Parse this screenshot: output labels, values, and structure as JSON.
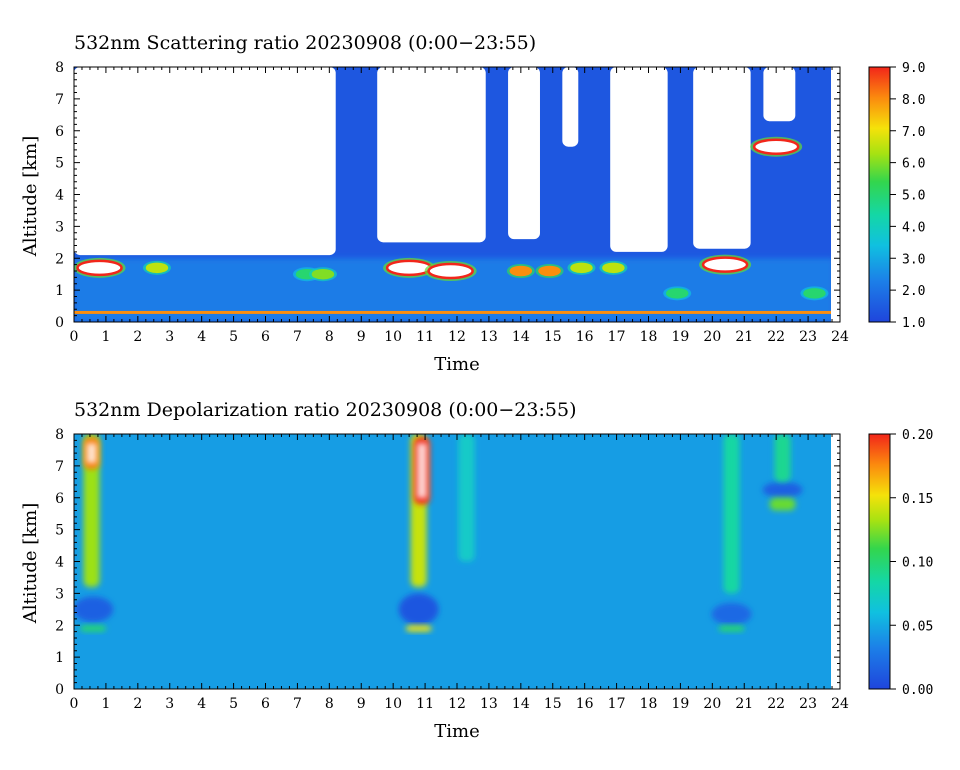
{
  "chart_data": [
    {
      "type": "heatmap",
      "title": "532nm Scattering ratio  20230908 (0:00−23:55)",
      "xlabel": "Time",
      "ylabel": "Altitude [km]",
      "xlim": [
        0,
        24
      ],
      "ylim": [
        0,
        8
      ],
      "x_ticks": [
        "0",
        "1",
        "2",
        "3",
        "4",
        "5",
        "6",
        "7",
        "8",
        "9",
        "10",
        "11",
        "12",
        "13",
        "14",
        "15",
        "16",
        "17",
        "18",
        "19",
        "20",
        "21",
        "22",
        "23",
        "24"
      ],
      "y_ticks": [
        "0",
        "1",
        "2",
        "3",
        "4",
        "5",
        "6",
        "7",
        "8"
      ],
      "data_end_time": 23.8,
      "colorbar": {
        "min": 1.0,
        "max": 9.0,
        "ticks": [
          "1.0",
          "2.0",
          "3.0",
          "4.0",
          "5.0",
          "6.0",
          "7.0",
          "8.0",
          "9.0"
        ]
      },
      "background_level": 1.4,
      "boundary_layer": {
        "top_km": 2.0,
        "level": 2.2
      },
      "surface_band": {
        "altitude_km": 0.3,
        "level": 8.0
      },
      "no_data_regions": [
        {
          "x_from": 0.0,
          "x_to": 8.2,
          "y_from": 2.1,
          "y_to": 8.0
        },
        {
          "x_from": 9.5,
          "x_to": 12.9,
          "y_from": 2.5,
          "y_to": 8.0
        },
        {
          "x_from": 13.6,
          "x_to": 14.6,
          "y_from": 2.6,
          "y_to": 8.0
        },
        {
          "x_from": 15.3,
          "x_to": 15.8,
          "y_from": 5.5,
          "y_to": 8.0
        },
        {
          "x_from": 16.8,
          "x_to": 18.6,
          "y_from": 2.2,
          "y_to": 8.0
        },
        {
          "x_from": 19.4,
          "x_to": 21.2,
          "y_from": 2.3,
          "y_to": 8.0
        },
        {
          "x_from": 21.6,
          "x_to": 22.6,
          "y_from": 6.3,
          "y_to": 8.0
        }
      ],
      "features": [
        {
          "time": 0.8,
          "altitude_km": 1.7,
          "level": 9.0,
          "note": "aerosol/cloud layer"
        },
        {
          "time": 2.6,
          "altitude_km": 1.7,
          "level": 6.5
        },
        {
          "time": 7.3,
          "altitude_km": 1.5,
          "level": 5.0
        },
        {
          "time": 7.8,
          "altitude_km": 1.5,
          "level": 6.0
        },
        {
          "time": 10.5,
          "altitude_km": 1.7,
          "level": 9.0
        },
        {
          "time": 11.8,
          "altitude_km": 1.6,
          "level": 9.0
        },
        {
          "time": 14.0,
          "altitude_km": 1.6,
          "level": 8.0
        },
        {
          "time": 14.9,
          "altitude_km": 1.6,
          "level": 8.0
        },
        {
          "time": 15.9,
          "altitude_km": 1.7,
          "level": 6.5
        },
        {
          "time": 16.9,
          "altitude_km": 1.7,
          "level": 6.5
        },
        {
          "time": 18.9,
          "altitude_km": 0.9,
          "level": 5.0
        },
        {
          "time": 20.4,
          "altitude_km": 1.8,
          "level": 9.0
        },
        {
          "time": 22.0,
          "altitude_km": 5.5,
          "level": 9.0,
          "note": "cloud"
        },
        {
          "time": 23.2,
          "altitude_km": 0.9,
          "level": 5.0
        }
      ]
    },
    {
      "type": "heatmap",
      "title": "532nm Depolarization ratio  20230908 (0:00−23:55)",
      "xlabel": "Time",
      "ylabel": "Altitude [km]",
      "xlim": [
        0,
        24
      ],
      "ylim": [
        0,
        8
      ],
      "x_ticks": [
        "0",
        "1",
        "2",
        "3",
        "4",
        "5",
        "6",
        "7",
        "8",
        "9",
        "10",
        "11",
        "12",
        "13",
        "14",
        "15",
        "16",
        "17",
        "18",
        "19",
        "20",
        "21",
        "22",
        "23",
        "24"
      ],
      "y_ticks": [
        "0",
        "1",
        "2",
        "3",
        "4",
        "5",
        "6",
        "7",
        "8"
      ],
      "data_end_time": 23.8,
      "colorbar": {
        "min": 0.0,
        "max": 0.2,
        "ticks": [
          "0.00",
          "0.05",
          "0.10",
          "0.15",
          "0.20"
        ]
      },
      "background_level": 0.045,
      "features": [
        {
          "time": 0.55,
          "alt_from": 3.2,
          "alt_to": 8.0,
          "level": 0.13,
          "note": "high-depol column"
        },
        {
          "time": 0.55,
          "alt_from": 6.9,
          "alt_to": 7.9,
          "level": 0.18
        },
        {
          "time": 10.8,
          "alt_from": 3.2,
          "alt_to": 8.0,
          "level": 0.14,
          "note": "high-depol column"
        },
        {
          "time": 10.9,
          "alt_from": 5.8,
          "alt_to": 7.9,
          "level": 0.2
        },
        {
          "time": 12.3,
          "alt_from": 4.0,
          "alt_to": 8.0,
          "level": 0.07
        },
        {
          "time": 20.6,
          "alt_from": 3.0,
          "alt_to": 8.0,
          "level": 0.085
        },
        {
          "time": 22.2,
          "alt_from": 6.5,
          "alt_to": 8.0,
          "level": 0.09
        },
        {
          "time": 22.2,
          "alt_from": 5.6,
          "alt_to": 6.0,
          "level": 0.12
        },
        {
          "time": 0.6,
          "alt_from": 1.8,
          "alt_to": 2.0,
          "level": 0.1
        },
        {
          "time": 10.8,
          "alt_from": 1.8,
          "alt_to": 2.0,
          "level": 0.15
        },
        {
          "time": 20.6,
          "alt_from": 1.8,
          "alt_to": 2.0,
          "level": 0.1
        }
      ],
      "low_depol_patches": [
        {
          "time": 0.6,
          "alt_from": 2.1,
          "alt_to": 2.9,
          "level": 0.015
        },
        {
          "time": 10.8,
          "alt_from": 2.0,
          "alt_to": 3.0,
          "level": 0.01
        },
        {
          "time": 20.6,
          "alt_from": 2.0,
          "alt_to": 2.7,
          "level": 0.02
        },
        {
          "time": 22.2,
          "alt_from": 6.0,
          "alt_to": 6.5,
          "level": 0.015
        }
      ]
    }
  ]
}
